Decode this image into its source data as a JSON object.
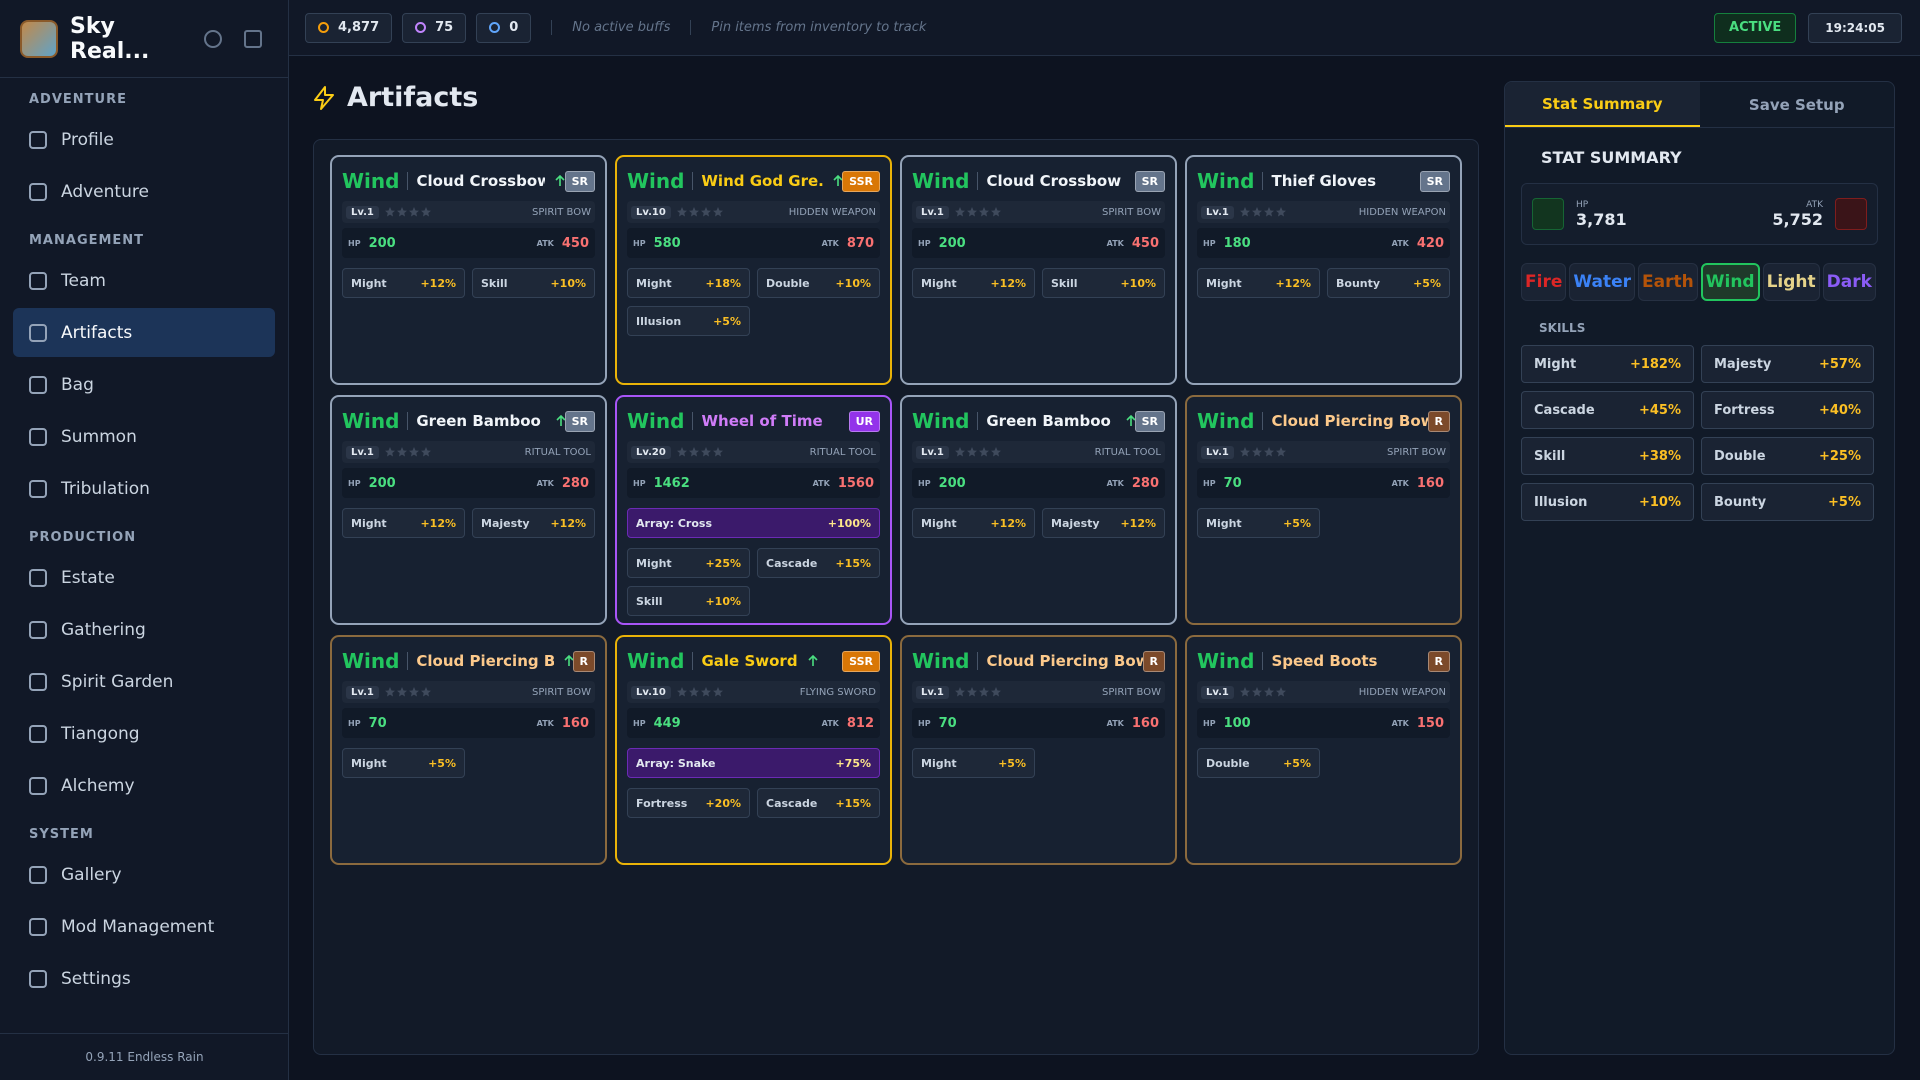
{
  "app": {
    "title": "Sky Real...",
    "version": "0.9.11 Endless Rain"
  },
  "sidebar": {
    "groups": [
      {
        "label": "ADVENTURE",
        "items": [
          {
            "label": "Profile",
            "active": false
          },
          {
            "label": "Adventure",
            "active": false
          }
        ]
      },
      {
        "label": "MANAGEMENT",
        "items": [
          {
            "label": "Team",
            "active": false
          },
          {
            "label": "Artifacts",
            "active": true
          },
          {
            "label": "Bag",
            "active": false
          },
          {
            "label": "Summon",
            "active": false
          },
          {
            "label": "Tribulation",
            "active": false
          }
        ]
      },
      {
        "label": "PRODUCTION",
        "items": [
          {
            "label": "Estate",
            "active": false
          },
          {
            "label": "Gathering",
            "active": false
          },
          {
            "label": "Spirit Garden",
            "active": false
          },
          {
            "label": "Tiangong",
            "active": false
          },
          {
            "label": "Alchemy",
            "active": false
          }
        ]
      },
      {
        "label": "SYSTEM",
        "items": [
          {
            "label": "Gallery",
            "active": false
          },
          {
            "label": "Mod Management",
            "active": false
          },
          {
            "label": "Settings",
            "active": false
          }
        ]
      }
    ]
  },
  "topbar": {
    "resources": [
      {
        "value": "4,877",
        "color": "#f59e0b"
      },
      {
        "value": "75",
        "color": "#c084fc"
      },
      {
        "value": "0",
        "color": "#60a5fa"
      }
    ],
    "buffs": "No active buffs",
    "pinned": "Pin items from inventory to track",
    "status": "ACTIVE",
    "time": "19:24:05"
  },
  "page": {
    "title": "Artifacts"
  },
  "cards": [
    {
      "element": "Wind",
      "name": "Cloud Crossbow",
      "upgradable": true,
      "rarity": "SR",
      "color": "#94a3b8",
      "badge": "#64748b",
      "name_color": "#f1f5f9",
      "level": "Lv.1",
      "type": "SPIRIT BOW",
      "hp_label": "HP",
      "hp": "200",
      "atk_label": "ATK",
      "atk": "450",
      "stats": [
        {
          "name": "Might",
          "value": "+12%"
        },
        {
          "name": "Skill",
          "value": "+10%"
        }
      ]
    },
    {
      "element": "Wind",
      "name": "Wind God Gre...",
      "upgradable": true,
      "rarity": "SSR",
      "color": "#eab308",
      "badge": "#d97706",
      "name_color": "#facc15",
      "level": "Lv.10",
      "type": "HIDDEN WEAPON",
      "hp_label": "HP",
      "hp": "580",
      "atk_label": "ATK",
      "atk": "870",
      "stats": [
        {
          "name": "Might",
          "value": "+18%"
        },
        {
          "name": "Double",
          "value": "+10%"
        },
        {
          "name": "Illusion",
          "value": "+5%"
        }
      ]
    },
    {
      "element": "Wind",
      "name": "Cloud Crossbow",
      "upgradable": false,
      "rarity": "SR",
      "color": "#94a3b8",
      "badge": "#64748b",
      "name_color": "#f1f5f9",
      "level": "Lv.1",
      "type": "SPIRIT BOW",
      "hp_label": "HP",
      "hp": "200",
      "atk_label": "ATK",
      "atk": "450",
      "stats": [
        {
          "name": "Might",
          "value": "+12%"
        },
        {
          "name": "Skill",
          "value": "+10%"
        }
      ]
    },
    {
      "element": "Wind",
      "name": "Thief Gloves",
      "upgradable": false,
      "rarity": "SR",
      "color": "#94a3b8",
      "badge": "#64748b",
      "name_color": "#f1f5f9",
      "level": "Lv.1",
      "type": "HIDDEN WEAPON",
      "hp_label": "HP",
      "hp": "180",
      "atk_label": "ATK",
      "atk": "420",
      "stats": [
        {
          "name": "Might",
          "value": "+12%"
        },
        {
          "name": "Bounty",
          "value": "+5%"
        }
      ]
    },
    {
      "element": "Wind",
      "name": "Green Bamboo ...",
      "upgradable": true,
      "rarity": "SR",
      "color": "#94a3b8",
      "badge": "#64748b",
      "name_color": "#f1f5f9",
      "level": "Lv.1",
      "type": "RITUAL TOOL",
      "hp_label": "HP",
      "hp": "200",
      "atk_label": "ATK",
      "atk": "280",
      "stats": [
        {
          "name": "Might",
          "value": "+12%"
        },
        {
          "name": "Majesty",
          "value": "+12%"
        }
      ]
    },
    {
      "element": "Wind",
      "name": "Wheel of Time",
      "upgradable": false,
      "rarity": "UR",
      "color": "#a855f7",
      "badge": "#9333ea",
      "name_color": "#d07cf8",
      "level": "Lv.20",
      "type": "RITUAL TOOL",
      "hp_label": "HP",
      "hp": "1462",
      "atk_label": "ATK",
      "atk": "1560",
      "array": {
        "label": "Array: Cross",
        "value": "+100%"
      },
      "stats": [
        {
          "name": "Might",
          "value": "+25%"
        },
        {
          "name": "Cascade",
          "value": "+15%"
        },
        {
          "name": "Skill",
          "value": "+10%"
        }
      ]
    },
    {
      "element": "Wind",
      "name": "Green Bamboo ...",
      "upgradable": true,
      "rarity": "SR",
      "color": "#94a3b8",
      "badge": "#64748b",
      "name_color": "#f1f5f9",
      "level": "Lv.1",
      "type": "RITUAL TOOL",
      "hp_label": "HP",
      "hp": "200",
      "atk_label": "ATK",
      "atk": "280",
      "stats": [
        {
          "name": "Might",
          "value": "+12%"
        },
        {
          "name": "Majesty",
          "value": "+12%"
        }
      ]
    },
    {
      "element": "Wind",
      "name": "Cloud Piercing Bow",
      "upgradable": false,
      "rarity": "R",
      "color": "#8b6a3e",
      "badge": "#7c4a2a",
      "name_color": "#fcc98b",
      "level": "Lv.1",
      "type": "SPIRIT BOW",
      "hp_label": "HP",
      "hp": "70",
      "atk_label": "ATK",
      "atk": "160",
      "stats": [
        {
          "name": "Might",
          "value": "+5%"
        }
      ]
    },
    {
      "element": "Wind",
      "name": "Cloud Piercing B...",
      "upgradable": true,
      "rarity": "R",
      "color": "#8b6a3e",
      "badge": "#7c4a2a",
      "name_color": "#fcc98b",
      "level": "Lv.1",
      "type": "SPIRIT BOW",
      "hp_label": "HP",
      "hp": "70",
      "atk_label": "ATK",
      "atk": "160",
      "stats": [
        {
          "name": "Might",
          "value": "+5%"
        }
      ]
    },
    {
      "element": "Wind",
      "name": "Gale Sword",
      "upgradable": true,
      "rarity": "SSR",
      "color": "#eab308",
      "badge": "#d97706",
      "name_color": "#facc15",
      "level": "Lv.10",
      "type": "FLYING SWORD",
      "hp_label": "HP",
      "hp": "449",
      "atk_label": "ATK",
      "atk": "812",
      "array": {
        "label": "Array: Snake",
        "value": "+75%"
      },
      "stats": [
        {
          "name": "Fortress",
          "value": "+20%"
        },
        {
          "name": "Cascade",
          "value": "+15%"
        }
      ]
    },
    {
      "element": "Wind",
      "name": "Cloud Piercing Bow",
      "upgradable": false,
      "rarity": "R",
      "color": "#8b6a3e",
      "badge": "#7c4a2a",
      "name_color": "#fcc98b",
      "level": "Lv.1",
      "type": "SPIRIT BOW",
      "hp_label": "HP",
      "hp": "70",
      "atk_label": "ATK",
      "atk": "160",
      "stats": [
        {
          "name": "Might",
          "value": "+5%"
        }
      ]
    },
    {
      "element": "Wind",
      "name": "Speed Boots",
      "upgradable": false,
      "rarity": "R",
      "color": "#8b6a3e",
      "badge": "#7c4a2a",
      "name_color": "#fcc98b",
      "level": "Lv.1",
      "type": "HIDDEN WEAPON",
      "hp_label": "HP",
      "hp": "100",
      "atk_label": "ATK",
      "atk": "150",
      "stats": [
        {
          "name": "Double",
          "value": "+5%"
        }
      ]
    }
  ],
  "summary": {
    "tabs": [
      {
        "label": "Stat Summary",
        "active": true
      },
      {
        "label": "Save Setup",
        "active": false
      }
    ],
    "heading": "STAT SUMMARY",
    "hp_label": "HP",
    "hp": "3,781",
    "atk_label": "ATK",
    "atk": "5,752",
    "elements": [
      {
        "label": "Fire",
        "color": "#dc2626",
        "active": false
      },
      {
        "label": "Water",
        "color": "#3b82f6",
        "active": false
      },
      {
        "label": "Earth",
        "color": "#b45309",
        "active": false
      },
      {
        "label": "Wind",
        "color": "#22c55e",
        "active": true
      },
      {
        "label": "Light",
        "color": "#e5d38a",
        "active": false
      },
      {
        "label": "Dark",
        "color": "#8b5cf6",
        "active": false
      }
    ],
    "skills_label": "SKILLS",
    "skills": [
      {
        "name": "Might",
        "value": "+182%"
      },
      {
        "name": "Majesty",
        "value": "+57%"
      },
      {
        "name": "Cascade",
        "value": "+45%"
      },
      {
        "name": "Fortress",
        "value": "+40%"
      },
      {
        "name": "Skill",
        "value": "+38%"
      },
      {
        "name": "Double",
        "value": "+25%"
      },
      {
        "name": "Illusion",
        "value": "+10%"
      },
      {
        "name": "Bounty",
        "value": "+5%"
      }
    ]
  }
}
